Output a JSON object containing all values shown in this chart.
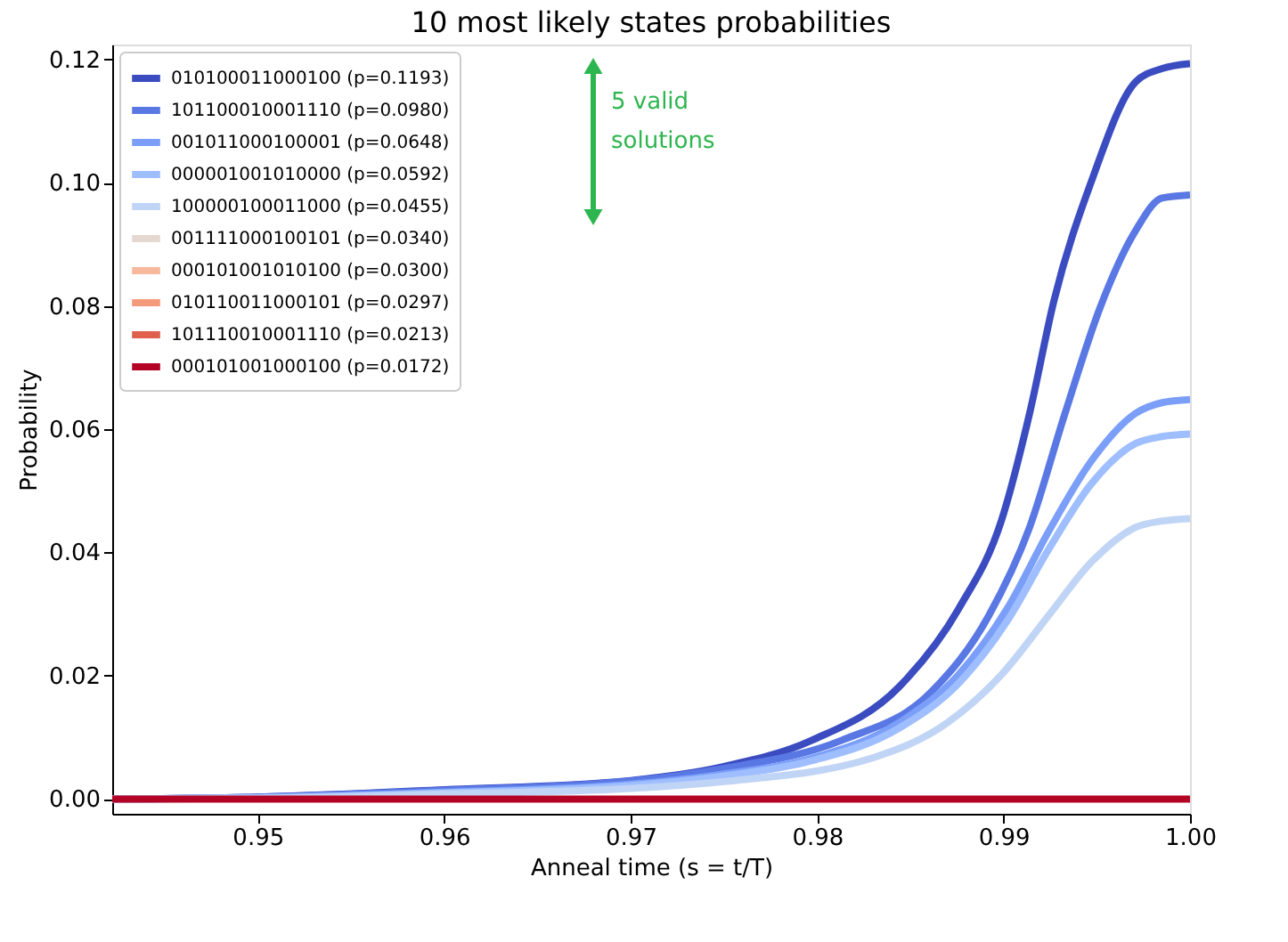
{
  "chart_data": {
    "type": "line",
    "title": "10 most likely states probabilities",
    "xlabel": "Anneal time (s = t/T)",
    "ylabel": "Probability",
    "xlim": [
      0.9422,
      1.0
    ],
    "ylim": [
      -0.0024,
      0.1224
    ],
    "xticks": [
      0.95,
      0.96,
      0.97,
      {
        "value": 0.98,
        "label": "0.98"
      },
      0.99,
      {
        "value": 1.0,
        "label": "1.00"
      }
    ],
    "yticks": [
      {
        "value": 0,
        "label": "0.00"
      },
      0.02,
      0.04,
      0.06,
      0.08,
      {
        "value": 0.1,
        "label": "0.10"
      },
      0.12
    ],
    "grid": false,
    "legend": "top left",
    "line_style": "solid",
    "marker": "none",
    "annotations": [
      "5 valid solutions"
    ],
    "series": [
      {
        "name": "010100011000100 (p=0.1193)",
        "color": "#3b4cc0",
        "x": [
          0.9422,
          0.95,
          0.96,
          0.97,
          0.9749,
          0.9797,
          0.9844,
          0.9876,
          0.9899,
          0.9914,
          0.9927,
          0.9947,
          0.9971,
          0.9985,
          1.0
        ],
        "values": [
          0,
          0.0003,
          0.0015,
          0.003,
          0.0052,
          0.0095,
          0.0182,
          0.0309,
          0.0453,
          0.0626,
          0.0808,
          0.1001,
          0.1164,
          0.1185,
          0.1193
        ]
      },
      {
        "name": "101100010001110 (p=0.0980)",
        "color": "#5a78e4",
        "x": [
          0.9422,
          0.95,
          0.96,
          0.97,
          0.9749,
          0.9813,
          0.9861,
          0.9892,
          0.9914,
          0.9933,
          0.9952,
          0.9971,
          0.9985,
          1.0
        ],
        "values": [
          0,
          0.0003,
          0.0014,
          0.0029,
          0.0049,
          0.0095,
          0.0173,
          0.0297,
          0.0441,
          0.0626,
          0.0799,
          0.0923,
          0.0975,
          0.098
        ]
      },
      {
        "name": "001011000100001 (p=0.0648)",
        "color": "#7b9ff9",
        "x": [
          0.9422,
          0.95,
          0.96,
          0.97,
          0.9749,
          0.9797,
          0.9844,
          0.9876,
          0.9902,
          0.9924,
          0.9947,
          0.9971,
          0.9985,
          1.0
        ],
        "values": [
          0,
          0.0002,
          0.0011,
          0.0024,
          0.004,
          0.0066,
          0.0124,
          0.0202,
          0.0309,
          0.0433,
          0.0548,
          0.0626,
          0.0643,
          0.0648
        ]
      },
      {
        "name": "000001001010000 (p=0.0592)",
        "color": "#9ebeff",
        "x": [
          0.9422,
          0.95,
          0.96,
          0.97,
          0.9749,
          0.9797,
          0.9844,
          0.9876,
          0.9902,
          0.9924,
          0.9947,
          0.9971,
          0.9985,
          1.0
        ],
        "values": [
          0,
          0.0002,
          0.001,
          0.0022,
          0.0037,
          0.0062,
          0.0115,
          0.0188,
          0.0289,
          0.0404,
          0.0511,
          0.0577,
          0.0588,
          0.0592
        ]
      },
      {
        "name": "100000100011000 (p=0.0455)",
        "color": "#c0d4f5",
        "x": [
          0.9422,
          0.95,
          0.96,
          0.97,
          0.9749,
          0.9829,
          0.987,
          0.9899,
          0.9924,
          0.9947,
          0.9971,
          0.9985,
          1.0
        ],
        "values": [
          0,
          0.0001,
          0.0008,
          0.0017,
          0.0028,
          0.0066,
          0.0124,
          0.0202,
          0.0297,
          0.0384,
          0.0441,
          0.0451,
          0.0455
        ]
      },
      {
        "name": "001111000100101 (p=0.0340)",
        "color": "#e5d8d1"
      },
      {
        "name": "000101001010100 (p=0.0300)",
        "color": "#f7b89c"
      },
      {
        "name": "010110011000101 (p=0.0297)",
        "color": "#f49a7b"
      },
      {
        "name": "101110010001110 (p=0.0213)",
        "color": "#de604d"
      },
      {
        "name": "000101001000100 (p=0.0172)",
        "color": "#b40426",
        "x": [
          0.9422,
          1.0
        ],
        "values": [
          0,
          0
        ]
      }
    ]
  }
}
